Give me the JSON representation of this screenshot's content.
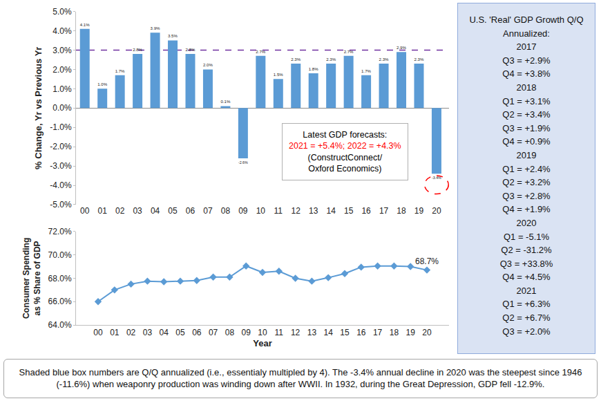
{
  "chart_data": [
    {
      "type": "bar",
      "categories": [
        "00",
        "01",
        "02",
        "03",
        "04",
        "05",
        "06",
        "07",
        "08",
        "09",
        "10",
        "11",
        "12",
        "13",
        "14",
        "15",
        "16",
        "17",
        "18",
        "19",
        "20"
      ],
      "values": [
        4.1,
        1.0,
        1.7,
        2.8,
        3.9,
        3.5,
        2.8,
        2.0,
        0.1,
        -2.6,
        2.7,
        1.5,
        2.3,
        1.8,
        2.3,
        2.7,
        1.7,
        2.3,
        2.9,
        2.3,
        -3.4
      ],
      "value_labels": [
        "4.1%",
        "1.0%",
        "1.7%",
        "2.8%",
        "3.9%",
        "3.5%",
        "2.8%",
        "2.0%",
        "0.1%",
        "-2.6%",
        "2.7%",
        "1.5%",
        "2.3%",
        "1.8%",
        "2.3%",
        "2.7%",
        "1.7%",
        "2.3%",
        "2.9%",
        "2.3%",
        "-3.4%"
      ],
      "data_labels": true,
      "color": "#5b9bd5",
      "ylabel": "% Change, Yr vs Previous Yr",
      "ylim": [
        -5,
        5
      ],
      "yticks": [
        {
          "value": -5,
          "label": "-5.0%"
        },
        {
          "value": -4,
          "label": "-4.0%"
        },
        {
          "value": -3,
          "label": "-3.0%"
        },
        {
          "value": -2,
          "label": "-2.0%"
        },
        {
          "value": -1,
          "label": "-1.0%"
        },
        {
          "value": 0,
          "label": "0.0%"
        },
        {
          "value": 1,
          "label": "1.0%"
        },
        {
          "value": 2,
          "label": "2.0%"
        },
        {
          "value": 3,
          "label": "3.0%"
        },
        {
          "value": 4,
          "label": "4.0%"
        },
        {
          "value": 5,
          "label": "5.0%"
        }
      ],
      "grid": false,
      "reference_line": {
        "value": 3.0,
        "color": "#7030a0",
        "line_style": "dash"
      },
      "highlight": {
        "category": "20",
        "color": "#ff0000",
        "line_style": "dash"
      },
      "annotation": {
        "lines": [
          {
            "text": "Latest GDP forecasts:",
            "color": "#000000"
          },
          {
            "text": "2021 = +5.4%; 2022 = +4.3%",
            "color": "#ff0000"
          },
          {
            "text": "(ConstructConnect/",
            "color": "#000000"
          },
          {
            "text": "Oxford Economics)",
            "color": "#000000"
          }
        ]
      }
    },
    {
      "type": "line",
      "categories": [
        "00",
        "01",
        "02",
        "03",
        "04",
        "05",
        "06",
        "07",
        "08",
        "09",
        "10",
        "11",
        "12",
        "13",
        "14",
        "15",
        "16",
        "17",
        "18",
        "19",
        "20"
      ],
      "values": [
        66.0,
        67.0,
        67.5,
        67.75,
        67.7,
        67.75,
        67.8,
        68.1,
        68.1,
        69.05,
        68.5,
        68.6,
        68.0,
        67.75,
        68.05,
        68.4,
        68.95,
        69.05,
        69.05,
        69.0,
        68.7
      ],
      "value_labels": [
        null,
        null,
        null,
        null,
        null,
        null,
        null,
        null,
        null,
        null,
        null,
        null,
        null,
        null,
        null,
        null,
        null,
        null,
        null,
        null,
        "68.7%"
      ],
      "data_labels": true,
      "color": "#5b9bd5",
      "marker": "diamond",
      "xlabel": "Year",
      "ylabel": [
        "Consumer Spending",
        "as % Share of GDP"
      ],
      "ylim": [
        64,
        72
      ],
      "yticks": [
        {
          "value": 64,
          "label": "64.0%"
        },
        {
          "value": 66,
          "label": "66.0%"
        },
        {
          "value": 68,
          "label": "68.0%"
        },
        {
          "value": 70,
          "label": "70.0%"
        },
        {
          "value": 72,
          "label": "72.0%"
        }
      ],
      "grid": false
    }
  ],
  "side_panel": {
    "title": [
      "U.S. 'Real' GDP Growth Q/Q",
      "Annualized:"
    ],
    "groups": [
      {
        "year": "2017",
        "items": [
          "Q3 = +2.9%",
          "Q4 = +3.8%"
        ]
      },
      {
        "year": "2018",
        "items": [
          "Q1 = +3.1%",
          "Q2 = +3.4%",
          "Q3 = +1.9%",
          "Q4 = +0.9%"
        ]
      },
      {
        "year": "2019",
        "items": [
          "Q1 = +2.4%",
          "Q2 = +3.2%",
          "Q3 = +2.8%",
          "Q4 = +1.9%"
        ]
      },
      {
        "year": "2020",
        "items": [
          "Q1 = -5.1%",
          "Q2 = -31.2%",
          "Q3 = +33.8%",
          "Q4 = +4.5%"
        ]
      },
      {
        "year": "2021",
        "items": [
          "Q1 = +6.3%",
          "Q2 = +6.7%",
          "Q3 = +2.0%"
        ]
      }
    ]
  },
  "note": "Shaded blue box numbers are Q/Q annualized (i.e., essentialy multipled by 4). The -3.4% annual decline in 2020 was the steepest since 1946 (-11.6%) when weaponry production was winding down after WWII. In 1932, during the Great Depression, GDP fell -12.9%."
}
